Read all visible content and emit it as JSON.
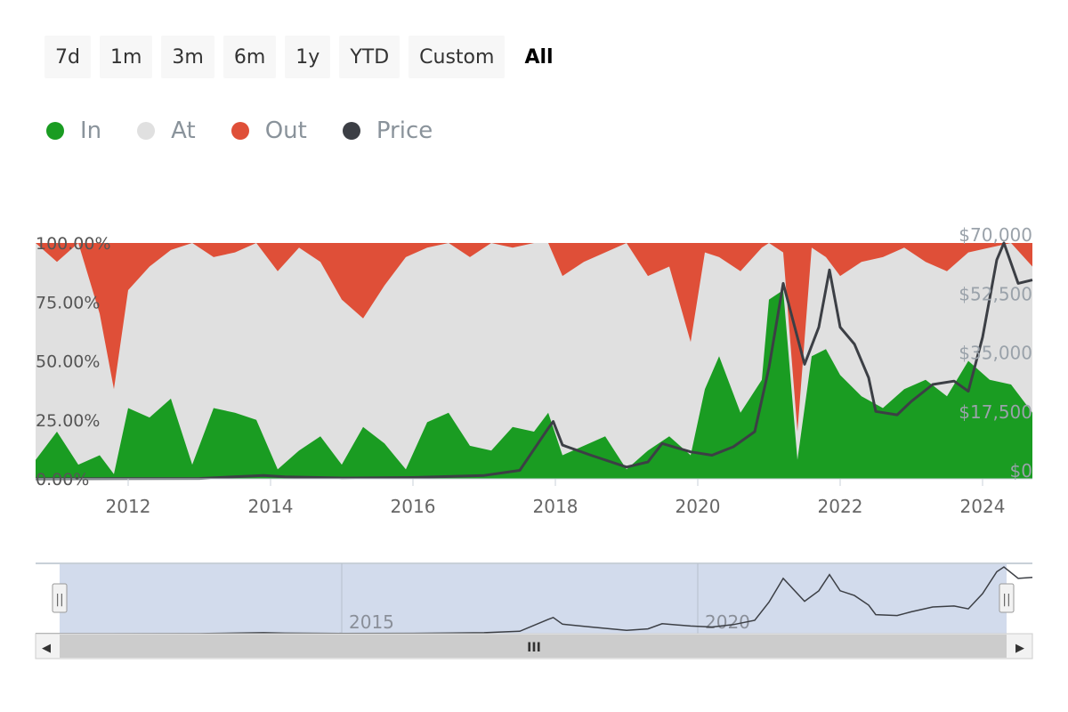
{
  "range_selector": {
    "buttons": [
      "7d",
      "1m",
      "3m",
      "6m",
      "1y",
      "YTD",
      "Custom",
      "All"
    ],
    "active": "All"
  },
  "legend": {
    "items": [
      {
        "label": "In",
        "color": "#1a9c22"
      },
      {
        "label": "At",
        "color": "#e0e0e0"
      },
      {
        "label": "Out",
        "color": "#df4f38"
      },
      {
        "label": "Price",
        "color": "#3c3f45"
      }
    ]
  },
  "chart_data": {
    "type": "area",
    "title": "",
    "x_range": [
      2010.7,
      2024.7
    ],
    "x_ticks": [
      "2012",
      "2014",
      "2016",
      "2018",
      "2020",
      "2022",
      "2024"
    ],
    "y_left": {
      "min": 0,
      "max": 100,
      "ticks": [
        "0.00%",
        "25.00%",
        "50.00%",
        "75.00%",
        "100.00%"
      ]
    },
    "y_right": {
      "min": 0,
      "max": 70000,
      "ticks": [
        "$0",
        "$17,500",
        "$35,000",
        "$52,500",
        "$70,000"
      ]
    },
    "grid": false,
    "legend_position": "top-left",
    "series": [
      {
        "name": "In",
        "unit": "%",
        "x": [
          2010.7,
          2011.0,
          2011.3,
          2011.6,
          2011.8,
          2012.0,
          2012.3,
          2012.6,
          2012.9,
          2013.2,
          2013.5,
          2013.8,
          2014.1,
          2014.4,
          2014.7,
          2015.0,
          2015.3,
          2015.6,
          2015.9,
          2016.2,
          2016.5,
          2016.8,
          2017.1,
          2017.4,
          2017.7,
          2017.9,
          2018.1,
          2018.4,
          2018.7,
          2019.0,
          2019.3,
          2019.6,
          2019.9,
          2020.1,
          2020.3,
          2020.6,
          2020.9,
          2021.0,
          2021.2,
          2021.4,
          2021.6,
          2021.8,
          2022.0,
          2022.3,
          2022.6,
          2022.9,
          2023.2,
          2023.5,
          2023.8,
          2024.1,
          2024.4,
          2024.7
        ],
        "values": [
          8,
          20,
          6,
          10,
          2,
          30,
          26,
          34,
          6,
          30,
          28,
          25,
          4,
          12,
          18,
          6,
          22,
          15,
          4,
          24,
          28,
          14,
          12,
          22,
          20,
          28,
          10,
          14,
          18,
          4,
          12,
          18,
          10,
          38,
          52,
          28,
          42,
          76,
          80,
          8,
          52,
          55,
          44,
          35,
          30,
          38,
          42,
          35,
          50,
          42,
          40,
          28
        ]
      },
      {
        "name": "Out",
        "unit": "%",
        "x": [
          2010.7,
          2011.0,
          2011.3,
          2011.6,
          2011.8,
          2012.0,
          2012.3,
          2012.6,
          2012.9,
          2013.2,
          2013.5,
          2013.8,
          2014.1,
          2014.4,
          2014.7,
          2015.0,
          2015.3,
          2015.6,
          2015.9,
          2016.2,
          2016.5,
          2016.8,
          2017.1,
          2017.4,
          2017.7,
          2017.9,
          2018.1,
          2018.4,
          2018.7,
          2019.0,
          2019.3,
          2019.6,
          2019.9,
          2020.1,
          2020.3,
          2020.6,
          2020.9,
          2021.0,
          2021.2,
          2021.4,
          2021.6,
          2021.8,
          2022.0,
          2022.3,
          2022.6,
          2022.9,
          2023.2,
          2023.5,
          2023.8,
          2024.1,
          2024.4,
          2024.7
        ],
        "values": [
          0,
          8,
          0,
          30,
          62,
          20,
          10,
          3,
          0,
          6,
          4,
          0,
          12,
          2,
          8,
          24,
          32,
          18,
          6,
          2,
          0,
          6,
          0,
          2,
          0,
          0,
          14,
          8,
          4,
          0,
          14,
          10,
          42,
          4,
          6,
          12,
          2,
          0,
          4,
          80,
          2,
          6,
          14,
          8,
          6,
          2,
          8,
          12,
          4,
          2,
          0,
          10
        ]
      },
      {
        "name": "Price",
        "unit": "$",
        "x": [
          2010.7,
          2013.0,
          2013.9,
          2014.2,
          2015.0,
          2016.0,
          2017.0,
          2017.5,
          2017.9,
          2017.97,
          2018.1,
          2018.5,
          2019.0,
          2019.3,
          2019.5,
          2019.9,
          2020.2,
          2020.5,
          2020.8,
          2021.0,
          2021.2,
          2021.3,
          2021.5,
          2021.7,
          2021.85,
          2022.0,
          2022.2,
          2022.4,
          2022.5,
          2022.8,
          2023.0,
          2023.3,
          2023.6,
          2023.8,
          2024.0,
          2024.2,
          2024.3,
          2024.5,
          2024.7
        ],
        "values": [
          0,
          100,
          1000,
          600,
          250,
          400,
          1000,
          2500,
          15000,
          17000,
          10000,
          7000,
          3500,
          5000,
          10500,
          8000,
          7000,
          9500,
          14000,
          33000,
          58000,
          50000,
          34000,
          45000,
          62000,
          45000,
          40000,
          30000,
          20000,
          19000,
          23000,
          28000,
          29000,
          26000,
          42000,
          65000,
          70000,
          58000,
          59000
        ]
      }
    ]
  },
  "navigator": {
    "labels": [
      "2015",
      "2020"
    ],
    "price_x": [
      2010.7,
      2013.0,
      2013.9,
      2014.2,
      2015.0,
      2016.0,
      2017.0,
      2017.5,
      2017.9,
      2017.97,
      2018.1,
      2018.5,
      2019.0,
      2019.3,
      2019.5,
      2019.9,
      2020.2,
      2020.5,
      2020.8,
      2021.0,
      2021.2,
      2021.3,
      2021.5,
      2021.7,
      2021.85,
      2022.0,
      2022.2,
      2022.4,
      2022.5,
      2022.8,
      2023.0,
      2023.3,
      2023.6,
      2023.8,
      2024.0,
      2024.2,
      2024.3,
      2024.5,
      2024.7
    ],
    "price_values": [
      0,
      100,
      1000,
      600,
      250,
      400,
      1000,
      2500,
      15000,
      17000,
      10000,
      7000,
      3500,
      5000,
      10500,
      8000,
      7000,
      9500,
      14000,
      33000,
      58000,
      50000,
      34000,
      45000,
      62000,
      45000,
      40000,
      30000,
      20000,
      19000,
      23000,
      28000,
      29000,
      26000,
      42000,
      65000,
      70000,
      58000,
      59000
    ]
  },
  "scrollbar": {
    "left_arrow": "◀",
    "right_arrow": "▶",
    "grip": "III",
    "handle_grip": "||"
  }
}
